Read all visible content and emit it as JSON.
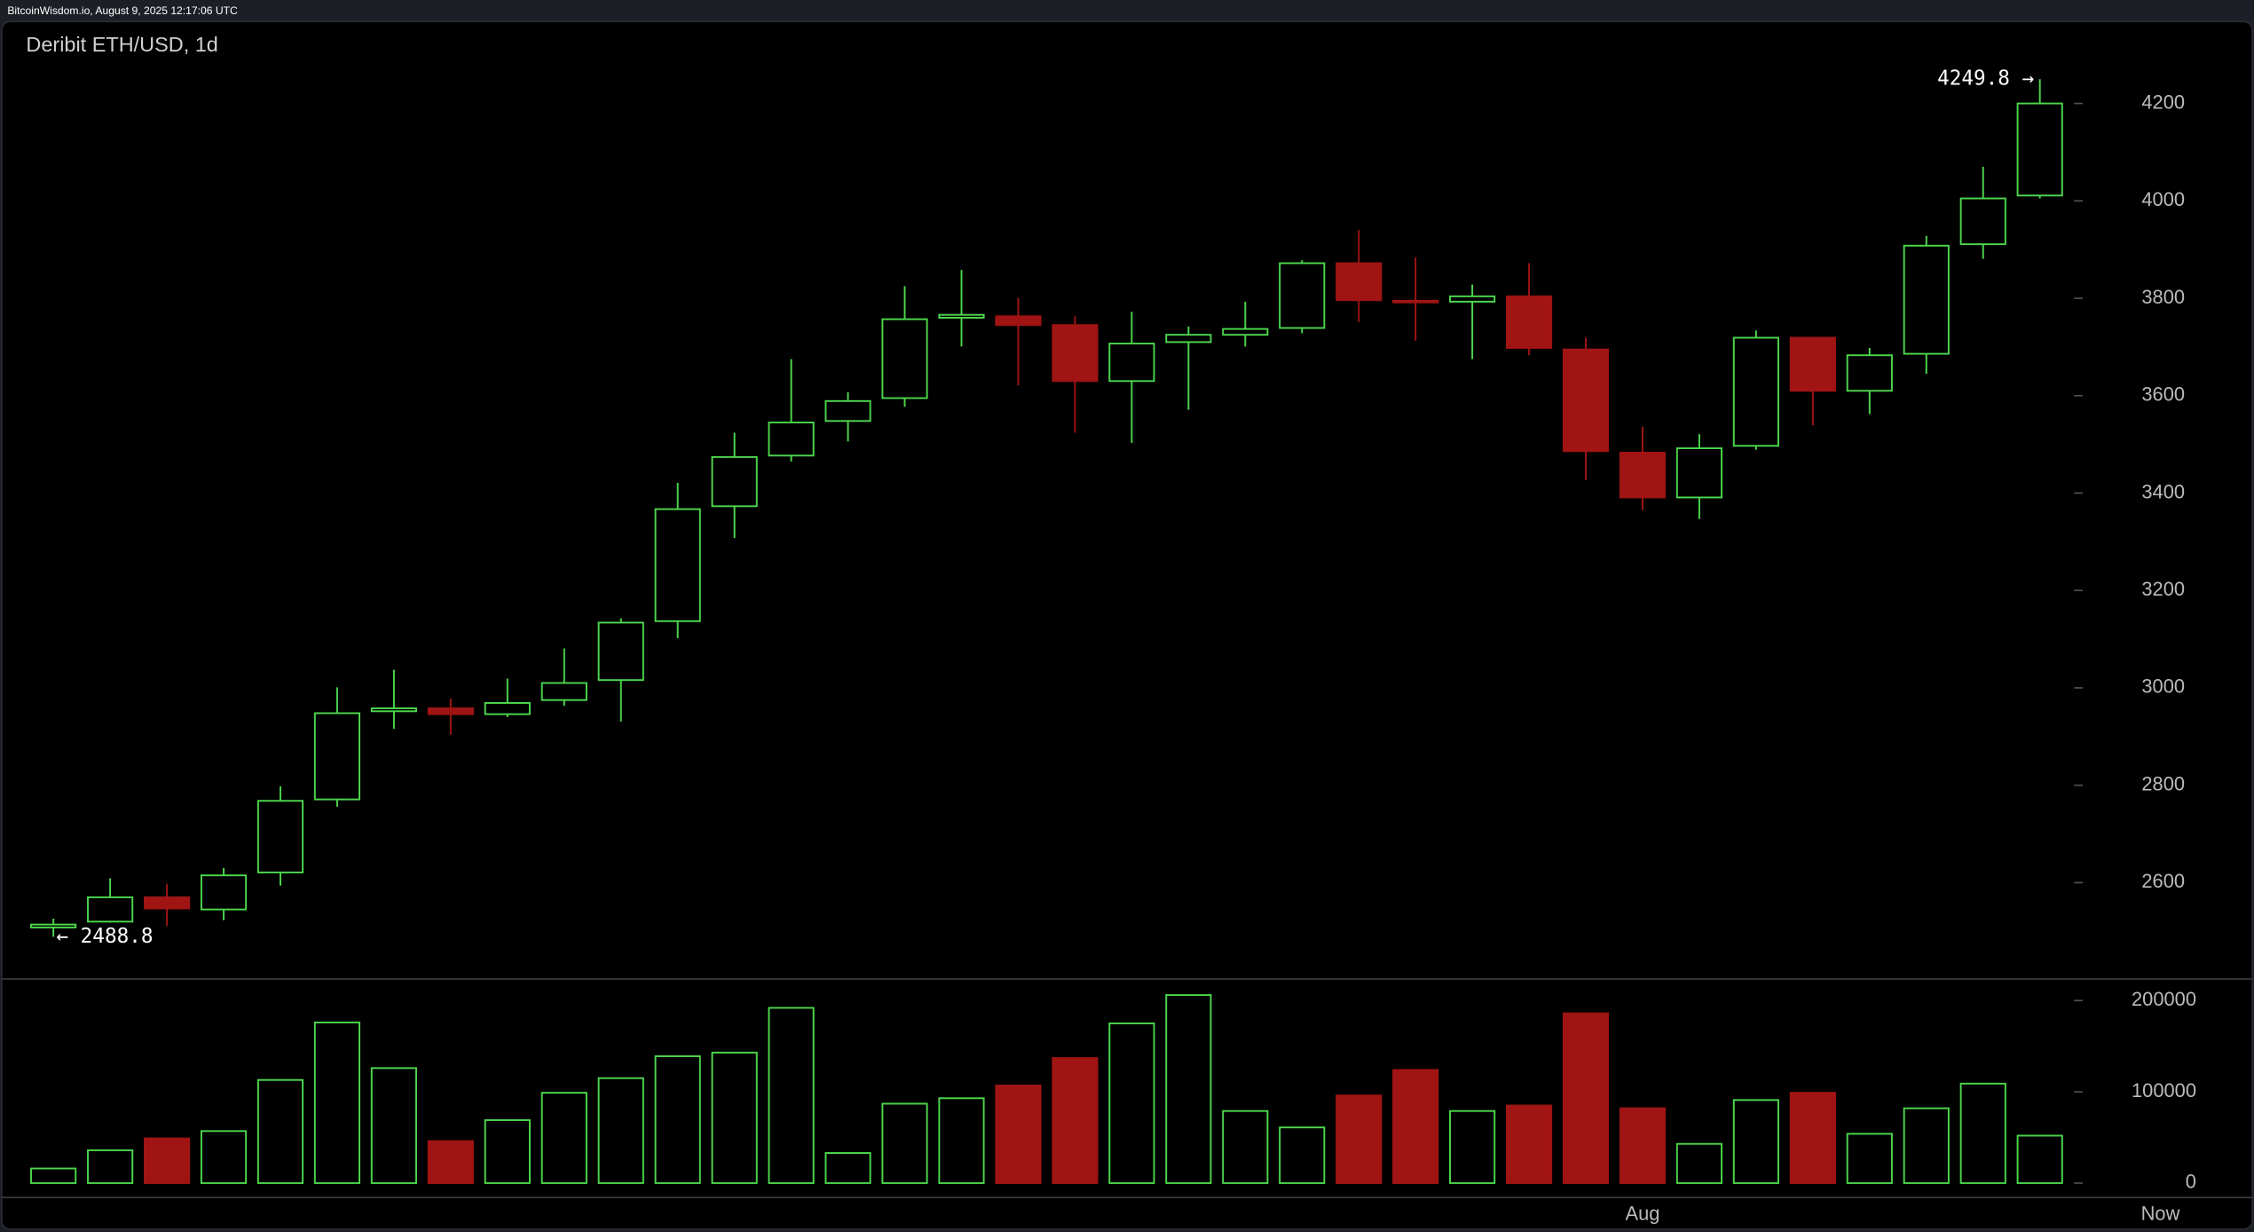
{
  "header": {
    "text": "BitcoinWisdom.io, August 9, 2025 12:17:06 UTC"
  },
  "chart_data": [
    {
      "type": "candlestick",
      "title": "Deribit ETH/USD, 1d",
      "categories": [
        null,
        null,
        null,
        null,
        null,
        null,
        null,
        null,
        null,
        null,
        null,
        null,
        null,
        null,
        null,
        null,
        null,
        null,
        null,
        null,
        null,
        null,
        null,
        null,
        null,
        null,
        null,
        null,
        "Aug",
        null,
        null,
        null,
        null,
        null,
        null,
        null
      ],
      "end_label": "Now",
      "open": [
        2508,
        2520,
        2570,
        2545,
        2621,
        2771,
        2952,
        2958,
        2946,
        2975,
        3016,
        3137,
        3373,
        3477,
        3548,
        3595,
        3760,
        3763,
        3745,
        3630,
        3710,
        3725,
        3739,
        3872,
        3795,
        3793,
        3804,
        3695,
        3483,
        3391,
        3497,
        3719,
        3610,
        3686,
        3911,
        4011
      ],
      "high": [
        2526,
        2609,
        2597,
        2630,
        2798,
        3001,
        3037,
        2978,
        3019,
        3081,
        3143,
        3421,
        3524,
        3675,
        3607,
        3825,
        3858,
        3801,
        3763,
        3772,
        3742,
        3793,
        3878,
        3940,
        3884,
        3828,
        3872,
        3719,
        3536,
        3521,
        3734,
        3719,
        3698,
        3928,
        4070,
        4249.8
      ],
      "low": [
        2488.8,
        2518,
        2511,
        2523,
        2594,
        2756,
        2916,
        2904,
        2940,
        2963,
        2931,
        3102,
        3308,
        3465,
        3506,
        3577,
        3701,
        3621,
        3524,
        3503,
        3571,
        3701,
        3728,
        3751,
        3713,
        3675,
        3683,
        3427,
        3365,
        3347,
        3489,
        3539,
        3562,
        3645,
        3881,
        4005
      ],
      "close": [
        2514,
        2570,
        2547,
        2615,
        2768,
        2948,
        2958,
        2946,
        2969,
        3010,
        3134,
        3367,
        3474,
        3545,
        3589,
        3757,
        3766,
        3745,
        3630,
        3707,
        3725,
        3737,
        3872,
        3796,
        3792,
        3804,
        3698,
        3486,
        3391,
        3492,
        3719,
        3610,
        3683,
        3908,
        4005,
        4200
      ],
      "up_color": "#4cd64c",
      "down_color": "#a01414",
      "max_label": "4249.8 →",
      "min_label": "← 2488.8",
      "ylim": [
        2400,
        4300
      ],
      "yticks": [
        2600,
        2800,
        3000,
        3200,
        3400,
        3600,
        3800,
        4000,
        4200
      ]
    },
    {
      "type": "bar",
      "title": null,
      "values": [
        16000,
        36000,
        49000,
        57000,
        113000,
        176000,
        126000,
        46000,
        69000,
        99000,
        115000,
        139000,
        143000,
        192000,
        33000,
        87000,
        93000,
        107000,
        137000,
        175000,
        206000,
        79000,
        61000,
        96000,
        124000,
        79000,
        85000,
        186000,
        82000,
        43000,
        91000,
        99000,
        54000,
        82000,
        109000,
        52000
      ],
      "ylim": [
        0,
        220000
      ],
      "yticks": [
        0,
        100000,
        200000
      ]
    }
  ]
}
